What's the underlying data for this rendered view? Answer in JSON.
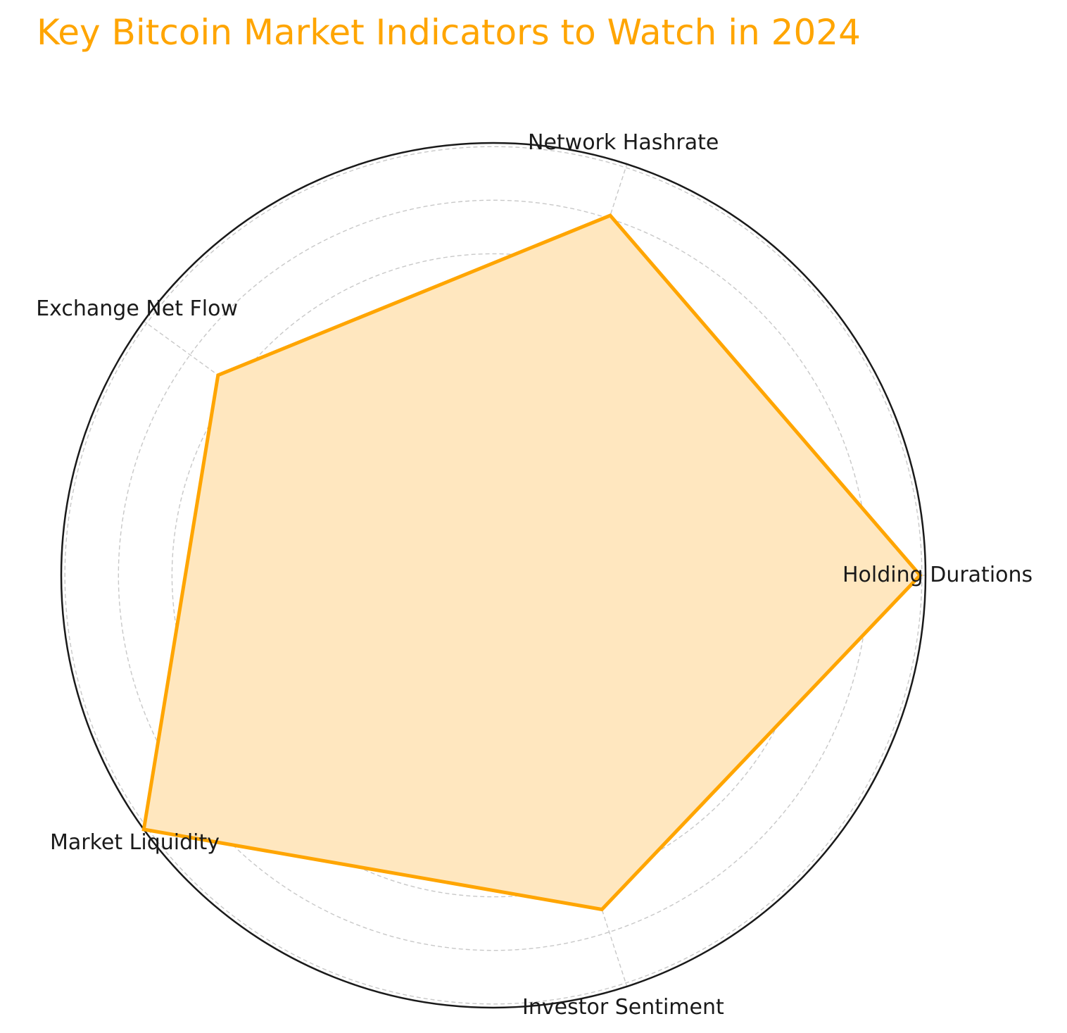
{
  "chart_data": {
    "type": "radar",
    "title": "Key Bitcoin Market Indicators to Watch in 2024",
    "categories": [
      "Holding Durations",
      "Network Hashrate",
      "Exchange Net Flow",
      "Market Liquidity",
      "Investor Sentiment"
    ],
    "series": [
      {
        "values": [
          79,
          70,
          63,
          80,
          65
        ]
      }
    ],
    "rlim": [
      0,
      80
    ],
    "grid": true,
    "colors": {
      "line": "#FFA500",
      "fill": "#FFE7BF",
      "title": "#FFA500"
    }
  }
}
